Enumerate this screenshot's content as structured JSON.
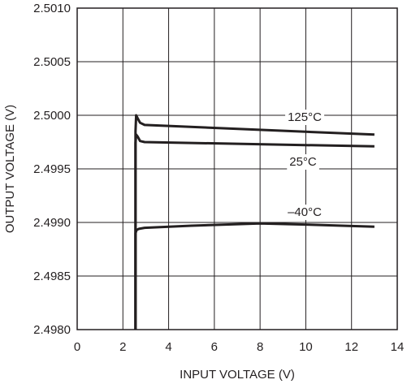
{
  "chart_data": {
    "type": "line",
    "title": "",
    "xlabel": "INPUT VOLTAGE (V)",
    "ylabel": "OUTPUT VOLTAGE (V)",
    "xlim": [
      0,
      14
    ],
    "ylim": [
      2.498,
      2.501
    ],
    "x_ticks": [
      0,
      2,
      4,
      6,
      8,
      10,
      12,
      14
    ],
    "x_tick_labels": [
      "0",
      "2",
      "4",
      "6",
      "8",
      "10",
      "12",
      "14"
    ],
    "y_ticks": [
      2.498,
      2.4985,
      2.499,
      2.4995,
      2.5,
      2.5005,
      2.501
    ],
    "y_tick_labels": [
      "2.4980",
      "2.4985",
      "2.4990",
      "2.4995",
      "2.5000",
      "2.5005",
      "2.5010"
    ],
    "grid": true,
    "line_color": "#231f20",
    "series": [
      {
        "name": "125°C",
        "x": [
          2.55,
          2.55,
          2.58,
          2.65,
          2.75,
          2.95,
          13
        ],
        "y": [
          2.498,
          2.49985,
          2.5,
          2.49997,
          2.49993,
          2.49991,
          2.49982
        ]
      },
      {
        "name": "25°C",
        "x": [
          2.55,
          2.55,
          2.58,
          2.65,
          2.75,
          2.95,
          13
        ],
        "y": [
          2.498,
          2.49974,
          2.49982,
          2.4998,
          2.49976,
          2.49975,
          2.49971
        ]
      },
      {
        "name": "–40°C",
        "x": [
          2.55,
          2.55,
          2.6,
          2.7,
          2.95,
          5,
          8,
          10,
          13
        ],
        "y": [
          2.498,
          2.4989,
          2.49893,
          2.49894,
          2.49895,
          2.49897,
          2.49899,
          2.49898,
          2.49896
        ]
      }
    ],
    "annotations": [
      {
        "text": "125°C",
        "series": 0
      },
      {
        "text": "25°C",
        "series": 1
      },
      {
        "text": "–40°C",
        "series": 2
      }
    ]
  }
}
